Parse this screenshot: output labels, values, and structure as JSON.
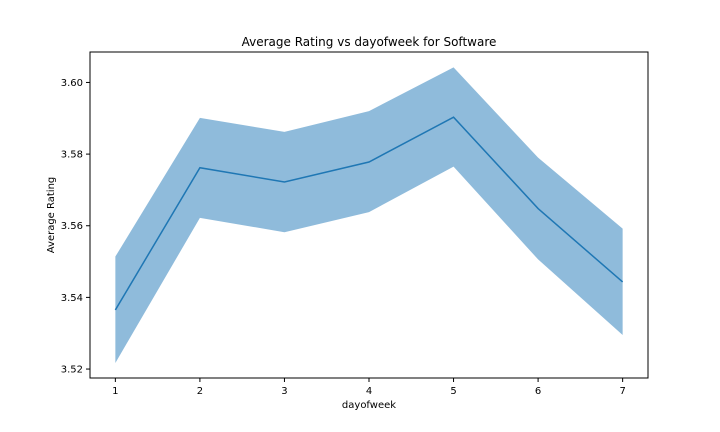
{
  "chart_data": {
    "type": "line",
    "title": "Average Rating vs dayofweek for Software",
    "xlabel": "dayofweek",
    "ylabel": "Average Rating",
    "x": [
      1,
      2,
      3,
      4,
      5,
      6,
      7
    ],
    "series": [
      {
        "values": [
          3.5365,
          3.5762,
          3.5722,
          3.5778,
          3.5903,
          3.5648,
          3.5443
        ],
        "ci_lower": [
          3.5217,
          3.5622,
          3.5582,
          3.5638,
          3.5765,
          3.5506,
          3.5295
        ],
        "ci_upper": [
          3.5514,
          3.5901,
          3.5862,
          3.592,
          3.6042,
          3.579,
          3.5592
        ]
      }
    ],
    "xticks": [
      "1",
      "2",
      "3",
      "4",
      "5",
      "6",
      "7"
    ],
    "yticks": [
      "3.52",
      "3.54",
      "3.56",
      "3.58",
      "3.60"
    ],
    "xlim": [
      0.7,
      7.3
    ],
    "ylim": [
      3.5175,
      3.6085
    ],
    "grid": false,
    "colors": {
      "line": "#1f77b4",
      "band": "#8fbbdb"
    }
  }
}
